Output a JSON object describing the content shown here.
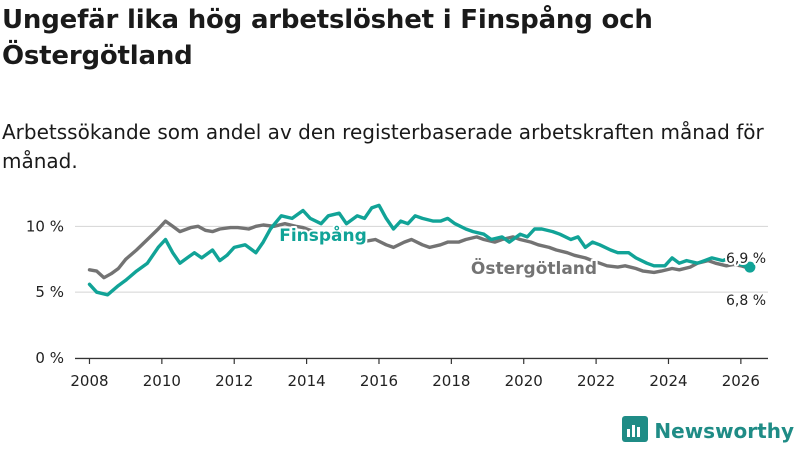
{
  "title": "Ungefär lika hög arbetslöshet i Finspång och Östergötland",
  "subtitle": "Arbetssökande som andel av den registerbaserade arbetskraften månad för månad.",
  "brand": {
    "name": "Newsworthy",
    "icon": "newsworthy-logo-icon"
  },
  "colors": {
    "finspang": "#11a397",
    "ostergotland": "#737373",
    "grid": "#d4d4d4",
    "axis": "#333333"
  },
  "chart_data": {
    "type": "line",
    "title": "Ungefär lika hög arbetslöshet i Finspång och Östergötland",
    "subtitle": "Arbetssökande som andel av den registerbaserade arbetskraften månad för månad.",
    "xlim": [
      2007.6,
      2026.75
    ],
    "ylim": [
      0,
      12
    ],
    "x_ticks": [
      2008,
      2010,
      2012,
      2014,
      2016,
      2018,
      2020,
      2022,
      2024,
      2026
    ],
    "x_tick_labels": [
      "2008",
      "2010",
      "2012",
      "2014",
      "2016",
      "2018",
      "2020",
      "2022",
      "2024",
      "2026"
    ],
    "y_ticks": [
      0,
      5,
      10
    ],
    "y_tick_labels": [
      "0 %",
      "5 %",
      "10 %"
    ],
    "grid": true,
    "series": [
      {
        "name": "Finspång",
        "label": "Finspång",
        "end_label": "6,9 %",
        "x": [
          2008.0,
          2008.2,
          2008.5,
          2008.8,
          2009.0,
          2009.3,
          2009.6,
          2009.9,
          2010.1,
          2010.3,
          2010.5,
          2010.7,
          2010.9,
          2011.1,
          2011.4,
          2011.6,
          2011.8,
          2012.0,
          2012.3,
          2012.6,
          2012.8,
          2013.0,
          2013.3,
          2013.6,
          2013.9,
          2014.1,
          2014.4,
          2014.6,
          2014.9,
          2015.1,
          2015.4,
          2015.6,
          2015.8,
          2016.0,
          2016.2,
          2016.4,
          2016.6,
          2016.8,
          2017.0,
          2017.2,
          2017.5,
          2017.7,
          2017.9,
          2018.1,
          2018.4,
          2018.6,
          2018.9,
          2019.1,
          2019.4,
          2019.6,
          2019.9,
          2020.1,
          2020.3,
          2020.5,
          2020.8,
          2021.0,
          2021.3,
          2021.5,
          2021.7,
          2021.9,
          2022.1,
          2022.4,
          2022.6,
          2022.9,
          2023.1,
          2023.4,
          2023.6,
          2023.9,
          2024.1,
          2024.3,
          2024.5,
          2024.8,
          2025.0,
          2025.2,
          2025.5,
          2025.7,
          2025.9,
          2026.1,
          2026.25
        ],
        "y": [
          5.6,
          5.0,
          4.8,
          5.5,
          5.9,
          6.6,
          7.2,
          8.4,
          9.0,
          8.0,
          7.2,
          7.6,
          8.0,
          7.6,
          8.2,
          7.4,
          7.8,
          8.4,
          8.6,
          8.0,
          8.8,
          9.8,
          10.8,
          10.6,
          11.2,
          10.6,
          10.2,
          10.8,
          11.0,
          10.2,
          10.8,
          10.6,
          11.4,
          11.6,
          10.6,
          9.8,
          10.4,
          10.2,
          10.8,
          10.6,
          10.4,
          10.4,
          10.6,
          10.2,
          9.8,
          9.6,
          9.4,
          9.0,
          9.2,
          8.8,
          9.4,
          9.2,
          9.8,
          9.8,
          9.6,
          9.4,
          9.0,
          9.2,
          8.4,
          8.8,
          8.6,
          8.2,
          8.0,
          8.0,
          7.6,
          7.2,
          7.0,
          7.0,
          7.6,
          7.2,
          7.4,
          7.2,
          7.4,
          7.6,
          7.4,
          7.6,
          7.2,
          7.0,
          6.9
        ]
      },
      {
        "name": "Östergötland",
        "label": "Östergötland",
        "end_label": "6,8 %",
        "x": [
          2008.0,
          2008.2,
          2008.4,
          2008.6,
          2008.8,
          2009.0,
          2009.3,
          2009.6,
          2009.9,
          2010.1,
          2010.3,
          2010.5,
          2010.8,
          2011.0,
          2011.2,
          2011.4,
          2011.6,
          2011.9,
          2012.1,
          2012.4,
          2012.6,
          2012.8,
          2013.1,
          2013.4,
          2013.7,
          2013.9,
          2014.2,
          2014.4,
          2014.7,
          2014.9,
          2015.2,
          2015.4,
          2015.7,
          2015.9,
          2016.2,
          2016.4,
          2016.7,
          2016.9,
          2017.2,
          2017.4,
          2017.7,
          2017.9,
          2018.2,
          2018.4,
          2018.7,
          2018.9,
          2019.2,
          2019.4,
          2019.7,
          2019.9,
          2020.2,
          2020.4,
          2020.7,
          2020.9,
          2021.2,
          2021.4,
          2021.7,
          2021.9,
          2022.1,
          2022.3,
          2022.6,
          2022.8,
          2023.1,
          2023.3,
          2023.6,
          2023.8,
          2024.1,
          2024.3,
          2024.6,
          2024.8,
          2025.1,
          2025.3,
          2025.6,
          2025.8,
          2026.0,
          2026.25
        ],
        "y": [
          6.7,
          6.6,
          6.1,
          6.4,
          6.8,
          7.5,
          8.2,
          9.0,
          9.8,
          10.4,
          10.0,
          9.6,
          9.9,
          10.0,
          9.7,
          9.6,
          9.8,
          9.9,
          9.9,
          9.8,
          10.0,
          10.1,
          10.0,
          10.2,
          10.0,
          9.9,
          9.6,
          9.2,
          9.4,
          9.6,
          9.2,
          9.0,
          8.9,
          9.0,
          8.6,
          8.4,
          8.8,
          9.0,
          8.6,
          8.4,
          8.6,
          8.8,
          8.8,
          9.0,
          9.2,
          9.0,
          8.8,
          9.0,
          9.2,
          9.0,
          8.8,
          8.6,
          8.4,
          8.2,
          8.0,
          7.8,
          7.6,
          7.4,
          7.2,
          7.0,
          6.9,
          7.0,
          6.8,
          6.6,
          6.5,
          6.6,
          6.8,
          6.7,
          6.9,
          7.2,
          7.4,
          7.2,
          7.0,
          7.1,
          7.0,
          6.8
        ]
      }
    ]
  }
}
